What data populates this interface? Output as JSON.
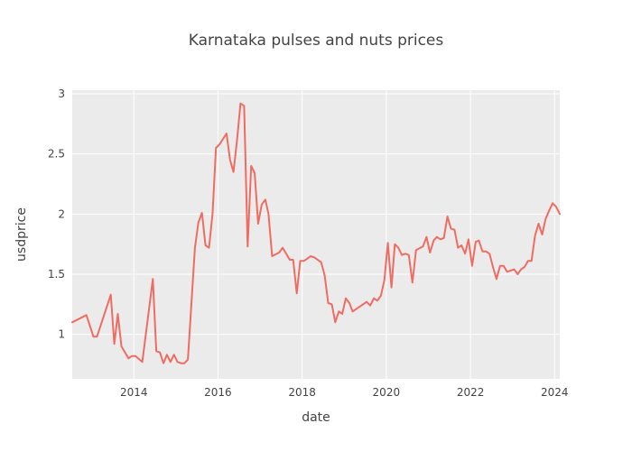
{
  "chart_data": {
    "type": "line",
    "title": "Karnataka pulses and nuts prices",
    "xlabel": "date",
    "ylabel": "usdprice",
    "xlim": [
      "2012-07-15",
      "2024-02-15"
    ],
    "ylim": [
      0.63,
      3.03
    ],
    "x_ticks": [
      {
        "value": "2014-01-01",
        "label": "2014"
      },
      {
        "value": "2016-01-01",
        "label": "2016"
      },
      {
        "value": "2018-01-01",
        "label": "2018"
      },
      {
        "value": "2020-01-01",
        "label": "2020"
      },
      {
        "value": "2022-01-01",
        "label": "2022"
      },
      {
        "value": "2024-01-01",
        "label": "2024"
      }
    ],
    "y_ticks": [
      {
        "value": 1,
        "label": "1"
      },
      {
        "value": 1.5,
        "label": "1.5"
      },
      {
        "value": 2,
        "label": "2"
      },
      {
        "value": 2.5,
        "label": "2.5"
      },
      {
        "value": 3,
        "label": "3"
      }
    ],
    "grid": true,
    "background": "#ebebeb",
    "series": [
      {
        "name": "",
        "color": "#ef6c62",
        "points": [
          [
            "2012-07-15",
            1.1
          ],
          [
            "2012-11-15",
            1.16
          ],
          [
            "2013-01-15",
            0.98
          ],
          [
            "2013-02-15",
            0.98
          ],
          [
            "2013-06-15",
            1.33
          ],
          [
            "2013-07-15",
            0.92
          ],
          [
            "2013-08-15",
            1.17
          ],
          [
            "2013-09-15",
            0.9
          ],
          [
            "2013-11-15",
            0.8
          ],
          [
            "2013-12-15",
            0.82
          ],
          [
            "2014-01-15",
            0.82
          ],
          [
            "2014-03-15",
            0.77
          ],
          [
            "2014-06-15",
            1.46
          ],
          [
            "2014-07-15",
            0.86
          ],
          [
            "2014-08-15",
            0.85
          ],
          [
            "2014-09-15",
            0.76
          ],
          [
            "2014-10-15",
            0.83
          ],
          [
            "2014-11-15",
            0.77
          ],
          [
            "2014-12-15",
            0.83
          ],
          [
            "2015-01-15",
            0.77
          ],
          [
            "2015-02-15",
            0.76
          ],
          [
            "2015-03-15",
            0.76
          ],
          [
            "2015-04-15",
            0.79
          ],
          [
            "2015-06-15",
            1.72
          ],
          [
            "2015-07-15",
            1.93
          ],
          [
            "2015-08-15",
            2.01
          ],
          [
            "2015-09-15",
            1.74
          ],
          [
            "2015-10-15",
            1.72
          ],
          [
            "2015-11-15",
            2.0
          ],
          [
            "2015-12-15",
            2.55
          ],
          [
            "2016-01-15",
            2.58
          ],
          [
            "2016-03-15",
            2.67
          ],
          [
            "2016-04-15",
            2.45
          ],
          [
            "2016-05-15",
            2.35
          ],
          [
            "2016-06-15",
            2.62
          ],
          [
            "2016-07-15",
            2.92
          ],
          [
            "2016-08-15",
            2.9
          ],
          [
            "2016-09-15",
            1.73
          ],
          [
            "2016-10-15",
            2.4
          ],
          [
            "2016-11-15",
            2.34
          ],
          [
            "2016-12-15",
            1.92
          ],
          [
            "2017-01-15",
            2.08
          ],
          [
            "2017-02-15",
            2.12
          ],
          [
            "2017-03-15",
            2.0
          ],
          [
            "2017-04-15",
            1.65
          ],
          [
            "2017-06-15",
            1.68
          ],
          [
            "2017-07-15",
            1.72
          ],
          [
            "2017-08-15",
            1.67
          ],
          [
            "2017-09-15",
            1.62
          ],
          [
            "2017-10-15",
            1.62
          ],
          [
            "2017-11-15",
            1.34
          ],
          [
            "2017-12-15",
            1.61
          ],
          [
            "2018-01-15",
            1.61
          ],
          [
            "2018-02-15",
            1.63
          ],
          [
            "2018-03-15",
            1.65
          ],
          [
            "2018-04-15",
            1.64
          ],
          [
            "2018-06-15",
            1.6
          ],
          [
            "2018-07-15",
            1.49
          ],
          [
            "2018-08-15",
            1.26
          ],
          [
            "2018-09-15",
            1.25
          ],
          [
            "2018-10-15",
            1.1
          ],
          [
            "2018-11-15",
            1.19
          ],
          [
            "2018-12-15",
            1.17
          ],
          [
            "2019-01-15",
            1.3
          ],
          [
            "2019-02-15",
            1.26
          ],
          [
            "2019-03-15",
            1.19
          ],
          [
            "2019-07-15",
            1.27
          ],
          [
            "2019-08-15",
            1.24
          ],
          [
            "2019-09-15",
            1.3
          ],
          [
            "2019-10-15",
            1.28
          ],
          [
            "2019-11-15",
            1.32
          ],
          [
            "2019-12-15",
            1.45
          ],
          [
            "2020-01-15",
            1.76
          ],
          [
            "2020-02-15",
            1.39
          ],
          [
            "2020-03-15",
            1.75
          ],
          [
            "2020-04-15",
            1.72
          ],
          [
            "2020-05-15",
            1.66
          ],
          [
            "2020-06-15",
            1.67
          ],
          [
            "2020-07-15",
            1.66
          ],
          [
            "2020-08-15",
            1.43
          ],
          [
            "2020-09-15",
            1.7
          ],
          [
            "2020-11-15",
            1.73
          ],
          [
            "2020-12-15",
            1.81
          ],
          [
            "2021-01-15",
            1.68
          ],
          [
            "2021-02-15",
            1.78
          ],
          [
            "2021-03-15",
            1.81
          ],
          [
            "2021-04-15",
            1.79
          ],
          [
            "2021-05-15",
            1.8
          ],
          [
            "2021-06-15",
            1.98
          ],
          [
            "2021-07-15",
            1.88
          ],
          [
            "2021-08-15",
            1.87
          ],
          [
            "2021-09-15",
            1.72
          ],
          [
            "2021-10-15",
            1.74
          ],
          [
            "2021-11-15",
            1.67
          ],
          [
            "2021-12-15",
            1.79
          ],
          [
            "2022-01-15",
            1.57
          ],
          [
            "2022-02-15",
            1.77
          ],
          [
            "2022-03-15",
            1.78
          ],
          [
            "2022-04-15",
            1.69
          ],
          [
            "2022-05-15",
            1.69
          ],
          [
            "2022-06-15",
            1.67
          ],
          [
            "2022-07-15",
            1.56
          ],
          [
            "2022-08-15",
            1.46
          ],
          [
            "2022-09-15",
            1.57
          ],
          [
            "2022-10-15",
            1.57
          ],
          [
            "2022-11-15",
            1.52
          ],
          [
            "2022-12-15",
            1.53
          ],
          [
            "2023-01-15",
            1.54
          ],
          [
            "2023-02-15",
            1.5
          ],
          [
            "2023-03-15",
            1.54
          ],
          [
            "2023-04-15",
            1.56
          ],
          [
            "2023-05-15",
            1.61
          ],
          [
            "2023-06-15",
            1.61
          ],
          [
            "2023-07-15",
            1.82
          ],
          [
            "2023-08-15",
            1.92
          ],
          [
            "2023-09-15",
            1.83
          ],
          [
            "2023-10-15",
            1.96
          ],
          [
            "2023-11-15",
            2.03
          ],
          [
            "2023-12-15",
            2.09
          ],
          [
            "2024-01-15",
            2.06
          ],
          [
            "2024-02-15",
            2.0
          ]
        ]
      }
    ]
  }
}
